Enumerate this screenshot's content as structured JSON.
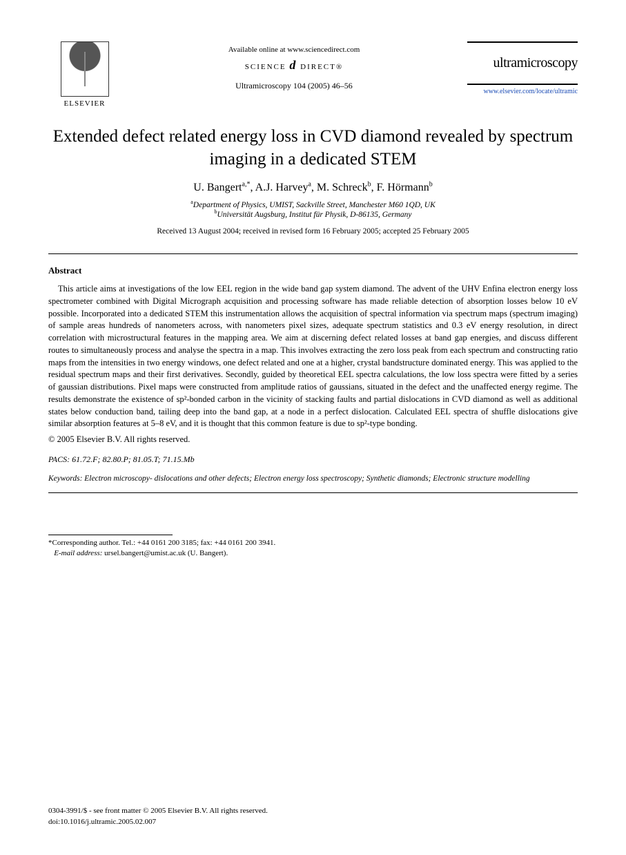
{
  "header": {
    "publisher": "ELSEVIER",
    "available_text": "Available online at www.sciencedirect.com",
    "sd_left": "SCIENCE",
    "sd_d": "d",
    "sd_right": "DIRECT®",
    "journal_ref": "Ultramicroscopy 104 (2005) 46–56",
    "journal_name": "ultramicroscopy",
    "journal_link": "www.elsevier.com/locate/ultramic"
  },
  "title": "Extended defect related energy loss in CVD diamond revealed by spectrum imaging in a dedicated STEM",
  "authors_html": "U. Bangert<sup>a,*</sup>, A.J. Harvey<sup>a</sup>, M. Schreck<sup>b</sup>, F. Hörmann<sup>b</sup>",
  "affiliations": [
    "<sup>a</sup>Department of Physics, UMIST, Sackville Street, Manchester M60 1QD, UK",
    "<sup>b</sup>Universität Augsburg, Institut für Physik, D-86135, Germany"
  ],
  "dates": "Received 13 August 2004; received in revised form 16 February 2005; accepted 25 February 2005",
  "abstract": {
    "heading": "Abstract",
    "body": "This article aims at investigations of the low EEL region in the wide band gap system diamond. The advent of the UHV Enfina electron energy loss spectrometer combined with Digital Micrograph acquisition and processing software has made reliable detection of absorption losses below 10 eV possible. Incorporated into a dedicated STEM this instrumentation allows the acquisition of spectral information via spectrum maps (spectrum imaging) of sample areas hundreds of nanometers across, with nanometers pixel sizes, adequate spectrum statistics and 0.3 eV energy resolution, in direct correlation with microstructural features in the mapping area. We aim at discerning defect related losses at band gap energies, and discuss different routes to simultaneously process and analyse the spectra in a map. This involves extracting the zero loss peak from each spectrum and constructing ratio maps from the intensities in two energy windows, one defect related and one at a higher, crystal bandstructure dominated energy. This was applied to the residual spectrum maps and their first derivatives. Secondly, guided by theoretical EEL spectra calculations, the low loss spectra were fitted by a series of gaussian distributions. Pixel maps were constructed from amplitude ratios of gaussians, situated in the defect and the unaffected energy regime. The results demonstrate the existence of sp²-bonded carbon in the vicinity of stacking faults and partial dislocations in CVD diamond as well as additional states below conduction band, tailing deep into the band gap, at a node in a perfect dislocation. Calculated EEL spectra of shuffle dislocations give similar absorption features at 5–8 eV, and it is thought that this common feature is due to sp²-type bonding.",
    "copyright": "© 2005 Elsevier B.V. All rights reserved."
  },
  "pacs": {
    "label": "PACS:",
    "value": "61.72.F; 82.80.P; 81.05.T; 71.15.Mb"
  },
  "keywords": {
    "label": "Keywords:",
    "value": "Electron microscopy- dislocations and other defects; Electron energy loss spectroscopy; Synthetic diamonds; Electronic structure modelling"
  },
  "footnote": {
    "corr": "*Corresponding author. Tel.: +44 0161 200 3185; fax: +44 0161 200 3941.",
    "email_label": "E-mail address:",
    "email": "ursel.bangert@umist.ac.uk (U. Bangert)."
  },
  "bottom": {
    "line1": "0304-3991/$ - see front matter © 2005 Elsevier B.V. All rights reserved.",
    "line2": "doi:10.1016/j.ultramic.2005.02.007"
  }
}
